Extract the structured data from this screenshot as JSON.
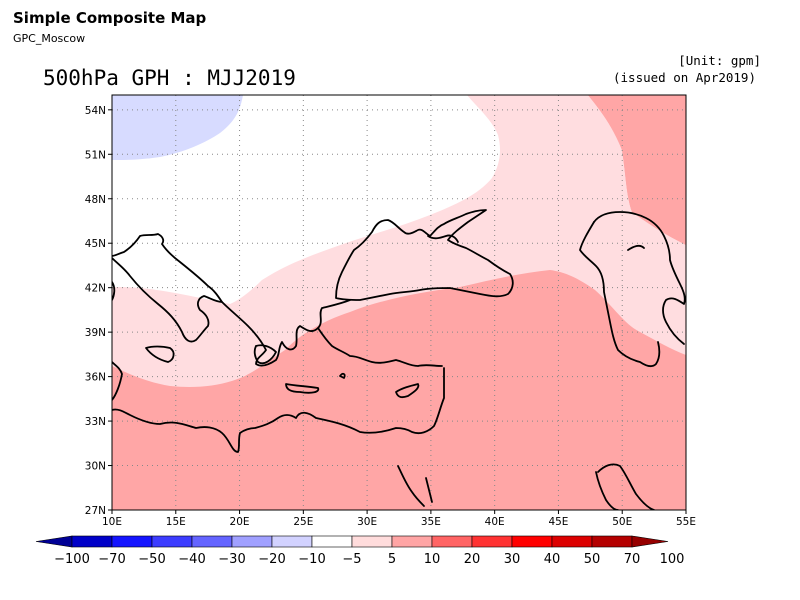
{
  "header": {
    "title": "Simple Composite Map",
    "subtitle": "GPC_Moscow"
  },
  "map": {
    "title": "500hPa GPH : MJJ2019",
    "unit": "[Unit: gpm]",
    "issued": "(issued on Apr2019)",
    "lat_labels": [
      "54N",
      "51N",
      "48N",
      "45N",
      "42N",
      "39N",
      "36N",
      "33N",
      "30N",
      "27N"
    ],
    "lon_labels": [
      "10E",
      "15E",
      "20E",
      "25E",
      "30E",
      "35E",
      "40E",
      "45E",
      "50E",
      "55E"
    ],
    "lon_range": [
      10,
      55
    ],
    "lat_range": [
      27,
      55
    ],
    "grid": "dotted"
  },
  "colorbar": {
    "labels": [
      "-100",
      "-70",
      "-50",
      "-40",
      "-30",
      "-20",
      "-10",
      "-5",
      "5",
      "10",
      "20",
      "30",
      "40",
      "50",
      "70",
      "100"
    ],
    "colors": [
      "#000096",
      "#0000c8",
      "#1414ff",
      "#3c3cff",
      "#6464ff",
      "#a0a0ff",
      "#d2d2ff",
      "#ffffff",
      "#ffdcdc",
      "#ffa5a5",
      "#ff6464",
      "#ff3232",
      "#ff0000",
      "#dc0000",
      "#b40000",
      "#960000"
    ]
  },
  "fill_colors": {
    "blue_light": "#d7dbff",
    "white": "#ffffff",
    "pink_light": "#ffdde0",
    "pink_medium": "#ffa6a6"
  }
}
